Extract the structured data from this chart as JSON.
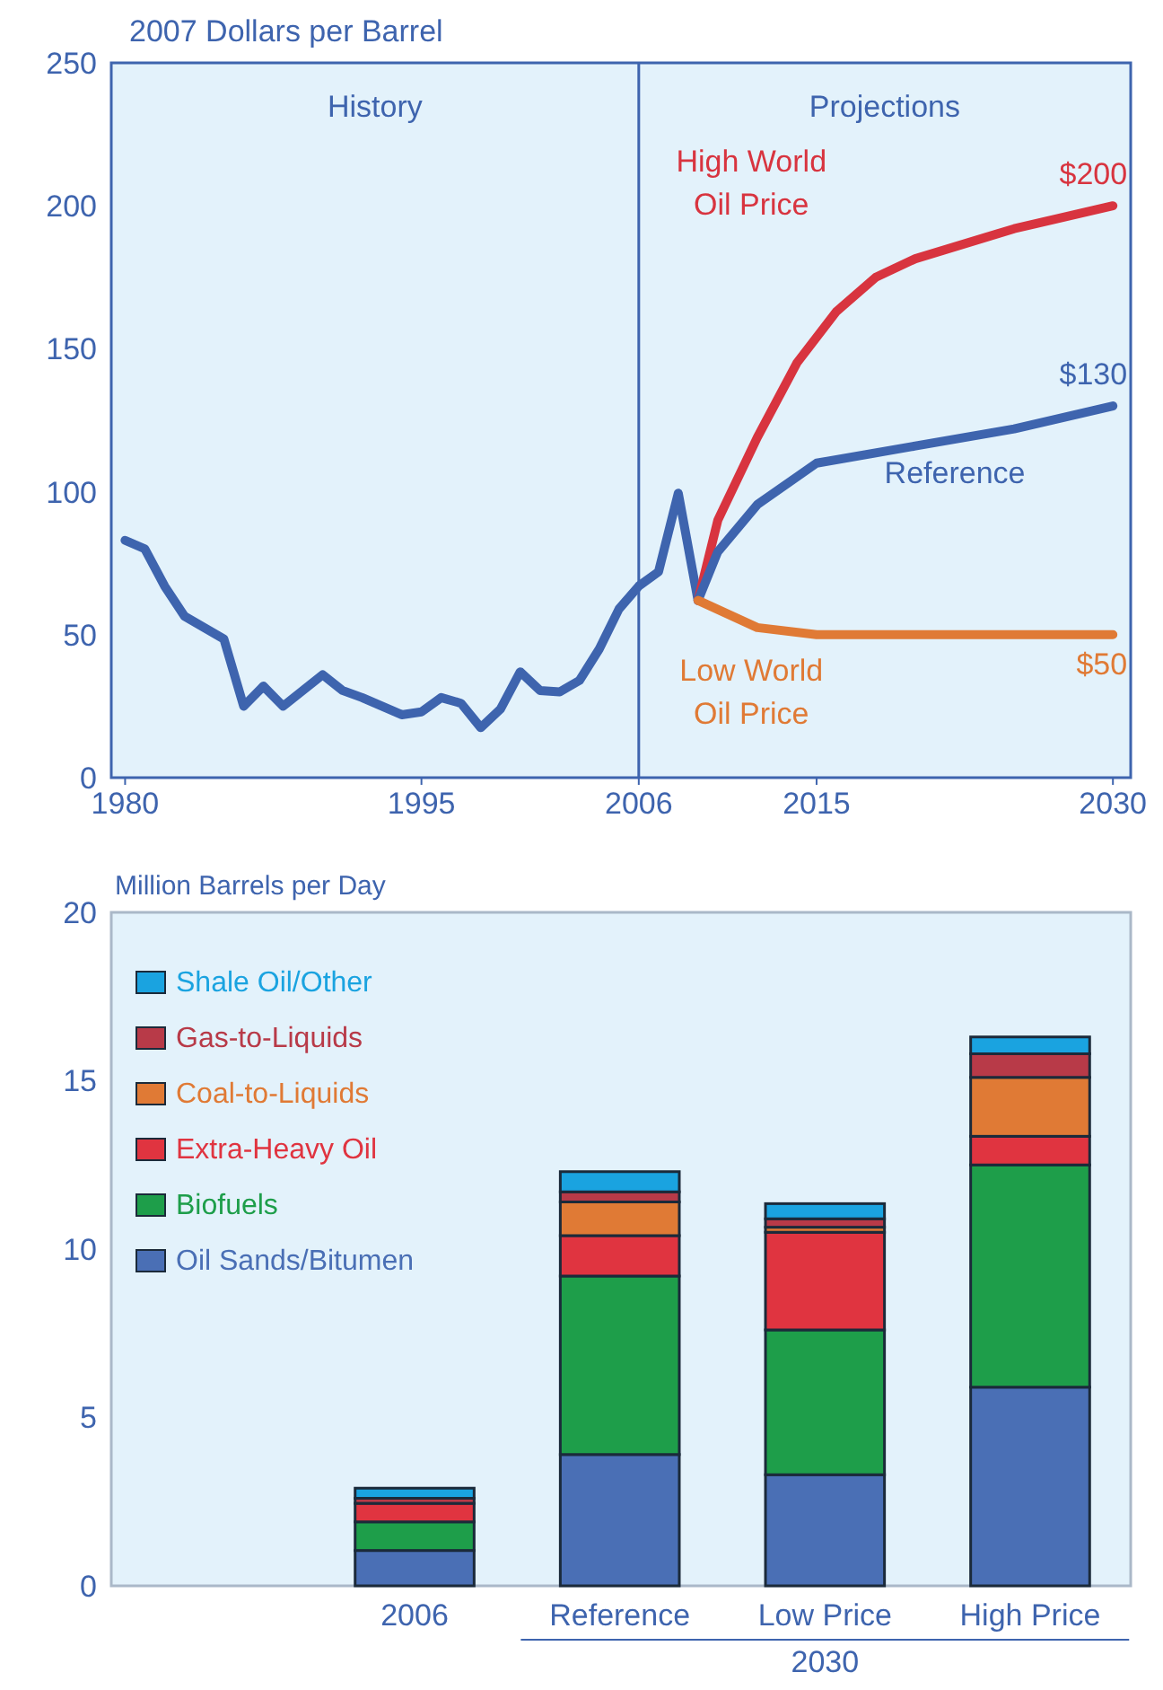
{
  "chart_data": [
    {
      "type": "line",
      "ylabel": "2007 Dollars per Barrel",
      "xlim": [
        1979.3,
        2030.9
      ],
      "ylim": [
        0,
        250
      ],
      "xticks": [
        1980,
        1995,
        2006,
        2015,
        2030
      ],
      "yticks": [
        0,
        50,
        100,
        150,
        200,
        250
      ],
      "grid": false,
      "marker": "none",
      "line_style": "solid",
      "annotations": [
        "History",
        "Projections"
      ],
      "ref_lines": [
        {
          "axis": "x",
          "value": 2006,
          "label": null
        }
      ],
      "series": [
        {
          "color": "#3e64ae",
          "x": [
            1980,
            1981,
            1982,
            1983,
            1984,
            1985,
            1986,
            1987,
            1988,
            1989,
            1990,
            1991,
            1992,
            1993,
            1994,
            1995,
            1996,
            1997,
            1998,
            1999,
            2000,
            2001,
            2002,
            2003,
            2004,
            2005,
            2006,
            2007,
            2008,
            2009
          ],
          "values": [
            83,
            80,
            67,
            56.5,
            52.5,
            48.5,
            25,
            32,
            25,
            30.5,
            36,
            30.5,
            28,
            25,
            22,
            23,
            28,
            26,
            17.5,
            24,
            37,
            30.5,
            30,
            34,
            45,
            59,
            67,
            72,
            99.5,
            62
          ]
        },
        {
          "name": "High World Oil Price",
          "color": "#d8343f",
          "x": [
            2009,
            2010,
            2012,
            2014,
            2016,
            2018,
            2020,
            2025,
            2030
          ],
          "values": [
            62,
            90,
            119,
            145,
            163,
            175,
            181.5,
            192,
            200
          ],
          "value_labels": [
            null,
            null,
            null,
            null,
            null,
            null,
            null,
            null,
            "$200"
          ]
        },
        {
          "name": "Reference",
          "color": "#3e64ae",
          "x": [
            2009,
            2010,
            2012,
            2015,
            2020,
            2025,
            2030
          ],
          "values": [
            62,
            79,
            95.5,
            110,
            116,
            122,
            130
          ],
          "value_labels": [
            null,
            null,
            null,
            null,
            null,
            null,
            "$130"
          ]
        },
        {
          "name": "Low World Oil Price",
          "color": "#e07a35",
          "x": [
            2009,
            2012,
            2015,
            2020,
            2030
          ],
          "values": [
            62,
            52.5,
            50,
            50,
            50
          ],
          "value_labels": [
            null,
            null,
            null,
            null,
            "$50"
          ]
        }
      ]
    },
    {
      "type": "bar",
      "stacked": true,
      "ylabel": "Million Barrels per Day",
      "categories": [
        "2006",
        "Reference",
        "Low Price",
        "High Price"
      ],
      "ylim": [
        0,
        20
      ],
      "yticks": [
        0,
        5,
        10,
        15,
        20
      ],
      "grid": false,
      "legend": "top left",
      "annotations": [
        "2030"
      ],
      "series": [
        {
          "name": "Oil Sands/Bitumen",
          "color": "#4a6fb5",
          "values": [
            1.05,
            3.9,
            3.3,
            5.9
          ]
        },
        {
          "name": "Biofuels",
          "color": "#1e9e4a",
          "values": [
            0.85,
            5.3,
            4.3,
            6.6
          ]
        },
        {
          "name": "Extra-Heavy Oil",
          "color": "#e03440",
          "values": [
            0.55,
            1.2,
            2.9,
            0.85
          ]
        },
        {
          "name": "Coal-to-Liquids",
          "color": "#e07a35",
          "values": [
            0,
            1.0,
            0.15,
            1.75
          ]
        },
        {
          "name": "Gas-to-Liquids",
          "color": "#b83a48",
          "values": [
            0.15,
            0.3,
            0.25,
            0.7
          ]
        },
        {
          "name": "Shale Oil/Other",
          "color": "#1aa3e0",
          "values": [
            0.3,
            0.6,
            0.45,
            0.5
          ]
        }
      ]
    }
  ]
}
